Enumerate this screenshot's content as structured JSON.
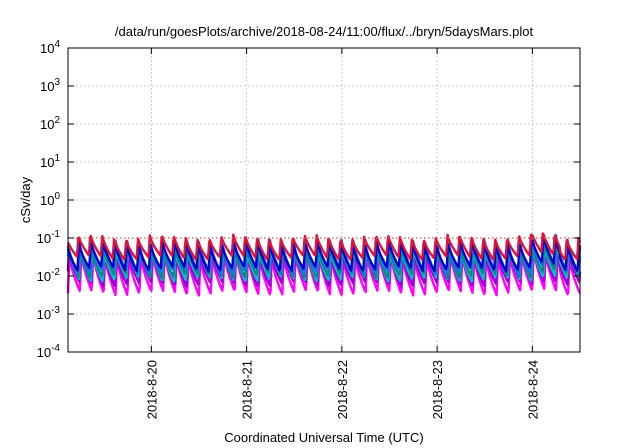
{
  "chart_data": {
    "type": "line",
    "title": "/data/run/goesPlots/archive/2018-08-24/11:00/flux/../bryn/5daysMars.plot",
    "xlabel": "Coordinated Universal Time (UTC)",
    "ylabel": "cSv/day",
    "yscale": "log",
    "ylim": [
      0.0001,
      10000
    ],
    "y_ticks": [
      {
        "value": 0.0001,
        "base": "10",
        "exp": "-4"
      },
      {
        "value": 0.001,
        "base": "10",
        "exp": "-3"
      },
      {
        "value": 0.01,
        "base": "10",
        "exp": "-2"
      },
      {
        "value": 0.1,
        "base": "10",
        "exp": "-1"
      },
      {
        "value": 1,
        "base": "10",
        "exp": "0"
      },
      {
        "value": 10,
        "base": "10",
        "exp": "1"
      },
      {
        "value": 100,
        "base": "10",
        "exp": "2"
      },
      {
        "value": 1000,
        "base": "10",
        "exp": "3"
      },
      {
        "value": 10000,
        "base": "10",
        "exp": "4"
      }
    ],
    "xlim": [
      "2018-08-19 03:00",
      "2018-08-24 12:00"
    ],
    "x_ticks": [
      "2018-8-20",
      "2018-8-21",
      "2018-8-22",
      "2018-8-23",
      "2018-8-24"
    ],
    "grid": true,
    "threshold_line": {
      "y": 0.1,
      "color": "#e05050",
      "style": "dotted"
    },
    "period_hours": 3,
    "series": [
      {
        "color": "#ff00ff",
        "peak": 0.035,
        "trough": 0.0035
      },
      {
        "color": "#9400d3",
        "peak": 0.045,
        "trough": 0.006
      },
      {
        "color": "#00c0c0",
        "peak": 0.055,
        "trough": 0.008
      },
      {
        "color": "#008b8b",
        "peak": 0.06,
        "trough": 0.01
      },
      {
        "color": "#1f6fff",
        "peak": 0.09,
        "trough": 0.013
      },
      {
        "color": "#0000cd",
        "peak": 0.08,
        "trough": 0.015
      },
      {
        "color": "#dc143c",
        "peak": 0.11,
        "trough": 0.03
      }
    ],
    "events": [
      {
        "start": "2018-08-24 00:00",
        "end": "2018-08-24 07:00",
        "factor": 1.3
      }
    ]
  }
}
